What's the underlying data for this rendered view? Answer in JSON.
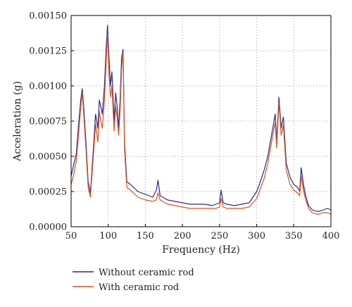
{
  "chart_data": {
    "type": "line",
    "title": "",
    "xlabel": "Frequency (Hz)",
    "ylabel": "Acceleration (g)",
    "xlim": [
      50,
      400
    ],
    "ylim": [
      0,
      0.0015
    ],
    "x_ticks": [
      "50",
      "100",
      "150",
      "200",
      "250",
      "300",
      "350",
      "400"
    ],
    "y_ticks": [
      "0.00000",
      "0.00025",
      "0.00050",
      "0.00075",
      "0.00100",
      "0.00125",
      "0.00150"
    ],
    "grid": true,
    "legend_position": "bottom-left",
    "series": [
      {
        "name": "Without ceramic rod",
        "color": "#2b2a8c",
        "x": [
          50,
          53,
          57,
          60,
          63,
          65,
          67,
          70,
          73,
          76,
          80,
          83,
          86,
          88,
          90,
          92,
          95,
          97,
          99,
          101,
          103,
          105,
          108,
          110,
          112,
          114,
          116,
          118,
          120,
          122,
          125,
          130,
          140,
          150,
          160,
          165,
          167,
          170,
          180,
          190,
          200,
          210,
          220,
          230,
          240,
          245,
          250,
          252,
          255,
          260,
          270,
          280,
          290,
          300,
          305,
          310,
          315,
          320,
          325,
          327,
          330,
          333,
          336,
          340,
          345,
          350,
          355,
          358,
          360,
          363,
          366,
          370,
          375,
          380,
          385,
          390,
          395,
          400
        ],
        "y": [
          0.00036,
          0.00043,
          0.00052,
          0.00072,
          0.0009,
          0.00098,
          0.00085,
          0.0006,
          0.00032,
          0.00024,
          0.00055,
          0.0008,
          0.0007,
          0.0009,
          0.00085,
          0.0008,
          0.001,
          0.00125,
          0.00143,
          0.0012,
          0.001,
          0.0011,
          0.00075,
          0.00095,
          0.00085,
          0.0007,
          0.0009,
          0.0012,
          0.00126,
          0.0006,
          0.00032,
          0.0003,
          0.00025,
          0.00023,
          0.00021,
          0.00026,
          0.00033,
          0.00022,
          0.00019,
          0.00018,
          0.00017,
          0.00016,
          0.00016,
          0.00016,
          0.00015,
          0.00016,
          0.00017,
          0.00026,
          0.00017,
          0.00016,
          0.00015,
          0.00016,
          0.00017,
          0.00025,
          0.00032,
          0.0004,
          0.0005,
          0.00065,
          0.0008,
          0.0006,
          0.00092,
          0.0007,
          0.00078,
          0.00045,
          0.00035,
          0.0003,
          0.00028,
          0.00025,
          0.00042,
          0.0003,
          0.00022,
          0.00015,
          0.00012,
          0.00011,
          0.00011,
          0.00012,
          0.00013,
          0.00012
        ]
      },
      {
        "name": "With ceramic rod",
        "color": "#d9541a",
        "x": [
          50,
          53,
          57,
          60,
          63,
          65,
          67,
          70,
          73,
          76,
          80,
          83,
          86,
          88,
          90,
          92,
          95,
          97,
          99,
          101,
          103,
          105,
          108,
          110,
          112,
          114,
          116,
          118,
          120,
          122,
          125,
          130,
          140,
          150,
          160,
          165,
          167,
          170,
          180,
          190,
          200,
          210,
          220,
          230,
          240,
          245,
          250,
          252,
          255,
          260,
          270,
          280,
          290,
          300,
          305,
          310,
          315,
          320,
          325,
          327,
          330,
          333,
          336,
          340,
          345,
          350,
          355,
          358,
          360,
          363,
          366,
          370,
          375,
          380,
          385,
          390,
          395,
          400
        ],
        "y": [
          0.0003,
          0.00036,
          0.00047,
          0.00065,
          0.00085,
          0.00095,
          0.0008,
          0.00055,
          0.00028,
          0.00021,
          0.0005,
          0.00073,
          0.0006,
          0.00082,
          0.00075,
          0.0007,
          0.0009,
          0.00115,
          0.00137,
          0.0011,
          0.00092,
          0.001,
          0.00068,
          0.00085,
          0.00078,
          0.00065,
          0.00082,
          0.00112,
          0.00124,
          0.00055,
          0.00028,
          0.00026,
          0.00021,
          0.00019,
          0.00018,
          0.00019,
          0.00024,
          0.00019,
          0.00016,
          0.00015,
          0.00014,
          0.00013,
          0.00013,
          0.00013,
          0.00013,
          0.00013,
          0.00014,
          0.0002,
          0.00014,
          0.00013,
          0.00013,
          0.00013,
          0.00014,
          0.0002,
          0.00027,
          0.00034,
          0.00045,
          0.0006,
          0.00074,
          0.00056,
          0.00088,
          0.00065,
          0.00072,
          0.0004,
          0.0003,
          0.00026,
          0.00024,
          0.00022,
          0.00036,
          0.00026,
          0.00019,
          0.00013,
          0.0001,
          9e-05,
          9e-05,
          0.0001,
          0.0001,
          9e-05
        ]
      }
    ]
  }
}
